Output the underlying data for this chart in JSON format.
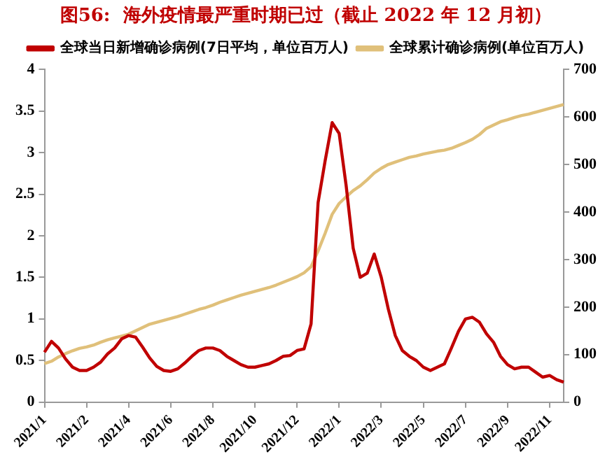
{
  "chart_data": {
    "type": "line",
    "title": "图56:  海外疫情最严重时期已过（截止 2022 年 12 月初）",
    "categories": [
      "2021/1",
      null,
      null,
      null,
      null,
      null,
      "2021/2",
      null,
      null,
      null,
      null,
      null,
      "2021/4",
      null,
      null,
      null,
      null,
      null,
      "2021/6",
      null,
      null,
      null,
      null,
      null,
      "2021/8",
      null,
      null,
      null,
      null,
      null,
      "2021/10",
      null,
      null,
      null,
      null,
      null,
      "2021/12",
      null,
      null,
      null,
      null,
      null,
      "2022/1",
      null,
      null,
      null,
      null,
      null,
      "2022/3",
      null,
      null,
      null,
      null,
      null,
      "2022/5",
      null,
      null,
      null,
      null,
      null,
      "2022/7",
      null,
      null,
      null,
      null,
      null,
      "2022/9",
      null,
      null,
      null,
      null,
      null,
      "2022/11",
      null,
      null
    ],
    "series": [
      {
        "name": "全球当日新增确诊病例(7日平均，单位百万人)",
        "color": "#c00000",
        "values": [
          0.6,
          0.73,
          0.65,
          0.52,
          0.42,
          0.38,
          0.38,
          0.42,
          0.48,
          0.58,
          0.65,
          0.76,
          0.8,
          0.78,
          0.66,
          0.53,
          0.43,
          0.38,
          0.37,
          0.4,
          0.47,
          0.55,
          0.62,
          0.65,
          0.65,
          0.62,
          0.55,
          0.5,
          0.45,
          0.42,
          0.42,
          0.44,
          0.46,
          0.5,
          0.55,
          0.56,
          0.62,
          0.64,
          0.94,
          2.4,
          2.9,
          3.36,
          3.23,
          2.6,
          1.85,
          1.5,
          1.55,
          1.78,
          1.5,
          1.12,
          0.8,
          0.62,
          0.55,
          0.5,
          0.42,
          0.38,
          0.42,
          0.46,
          0.65,
          0.85,
          1.0,
          1.02,
          0.96,
          0.82,
          0.72,
          0.55,
          0.45,
          0.4,
          0.42,
          0.42,
          0.36,
          0.3,
          0.32,
          0.27,
          0.24
        ]
      },
      {
        "name": "全球累计确诊病例(单位百万人)",
        "color": "#e0c07a",
        "axis": "y2",
        "values": [
          81,
          86,
          95,
          102,
          108,
          113,
          116,
          120,
          126,
          131,
          135,
          139,
          143,
          150,
          157,
          164,
          168,
          172,
          176,
          180,
          185,
          190,
          195,
          199,
          204,
          210,
          215,
          220,
          225,
          229,
          233,
          237,
          241,
          246,
          252,
          258,
          264,
          272,
          285,
          318,
          355,
          395,
          418,
          432,
          445,
          455,
          468,
          482,
          492,
          500,
          505,
          510,
          515,
          518,
          522,
          525,
          528,
          530,
          534,
          540,
          546,
          553,
          563,
          576,
          583,
          590,
          594,
          599,
          603,
          606,
          610,
          614,
          618,
          622,
          626
        ]
      }
    ],
    "ylim": [
      0,
      4
    ],
    "yticks": [
      0,
      0.5,
      1,
      1.5,
      2,
      2.5,
      3,
      3.5,
      4
    ],
    "y2lim": [
      0,
      700
    ],
    "y2ticks": [
      0,
      100,
      200,
      300,
      400,
      500,
      600,
      700
    ],
    "grid": false,
    "legend": "top",
    "marker": "none",
    "line_style": "solid"
  }
}
